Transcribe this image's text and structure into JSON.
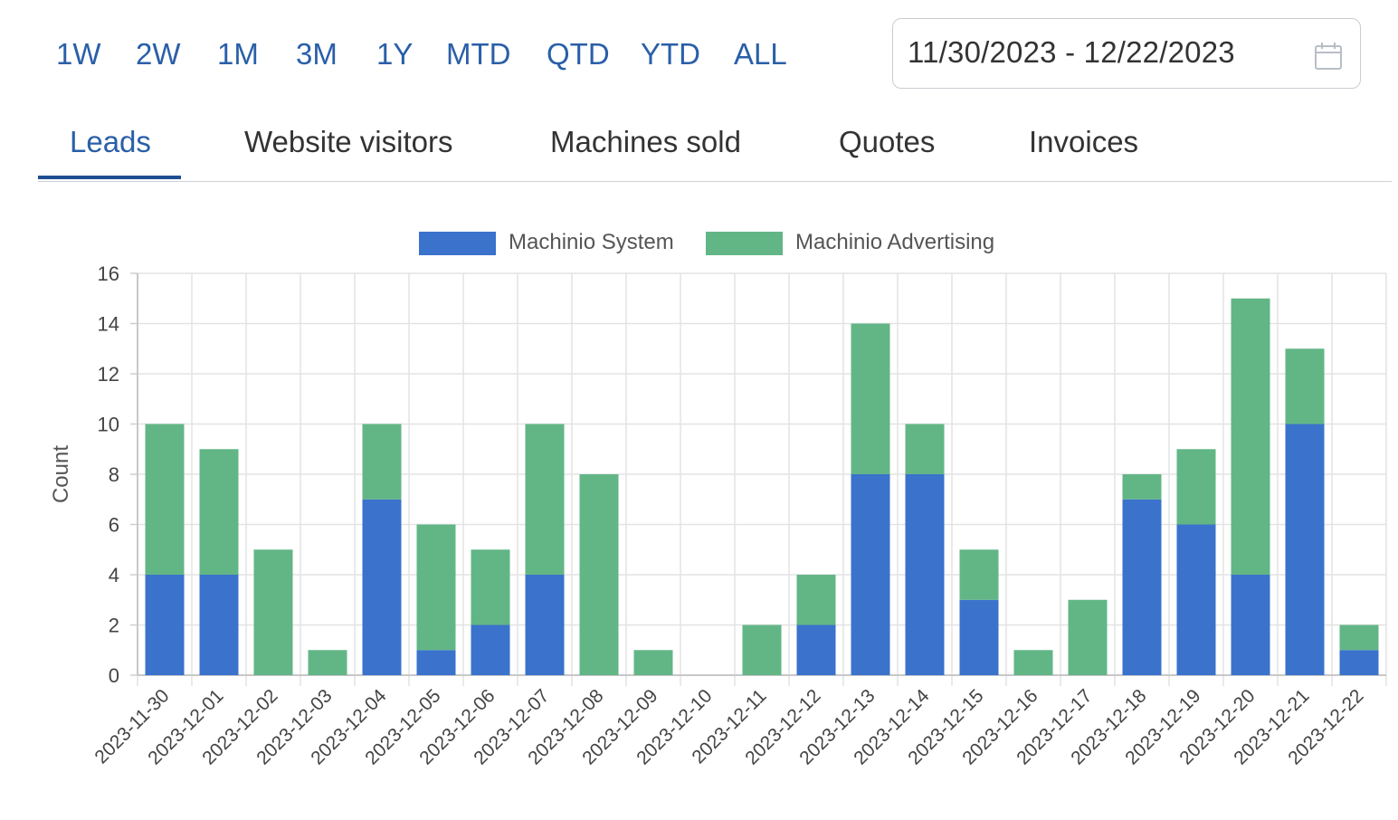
{
  "range_buttons": [
    "1W",
    "2W",
    "1M",
    "3M",
    "1Y",
    "MTD",
    "QTD",
    "YTD",
    "ALL"
  ],
  "date_range": "11/30/2023 - 12/22/2023",
  "tabs": [
    "Leads",
    "Website visitors",
    "Machines sold",
    "Quotes",
    "Invoices"
  ],
  "active_tab": "Leads",
  "icons": {
    "date_picker": "calendar-icon"
  },
  "colors": {
    "accent": "#2a5fa8",
    "system": "#3a72cc",
    "advertising": "#62b686"
  },
  "chart_data": {
    "type": "bar",
    "stacked": true,
    "ylabel": "Count",
    "xlabel": "",
    "ylim": [
      0,
      16
    ],
    "yticks": [
      0,
      2,
      4,
      6,
      8,
      10,
      12,
      14,
      16
    ],
    "grid": true,
    "legend_position": "top-center",
    "categories": [
      "2023-11-30",
      "2023-12-01",
      "2023-12-02",
      "2023-12-03",
      "2023-12-04",
      "2023-12-05",
      "2023-12-06",
      "2023-12-07",
      "2023-12-08",
      "2023-12-09",
      "2023-12-10",
      "2023-12-11",
      "2023-12-12",
      "2023-12-13",
      "2023-12-14",
      "2023-12-15",
      "2023-12-16",
      "2023-12-17",
      "2023-12-18",
      "2023-12-19",
      "2023-12-20",
      "2023-12-21",
      "2023-12-22"
    ],
    "series": [
      {
        "name": "Machinio System",
        "color": "#3a72cc",
        "values": [
          4,
          4,
          0,
          0,
          7,
          1,
          2,
          4,
          0,
          0,
          0,
          0,
          2,
          8,
          8,
          3,
          0,
          0,
          7,
          6,
          4,
          10,
          1
        ]
      },
      {
        "name": "Machinio Advertising",
        "color": "#62b686",
        "values": [
          6,
          5,
          5,
          1,
          3,
          5,
          3,
          6,
          8,
          1,
          0,
          2,
          2,
          6,
          2,
          2,
          1,
          3,
          1,
          3,
          11,
          3,
          1
        ]
      }
    ]
  }
}
